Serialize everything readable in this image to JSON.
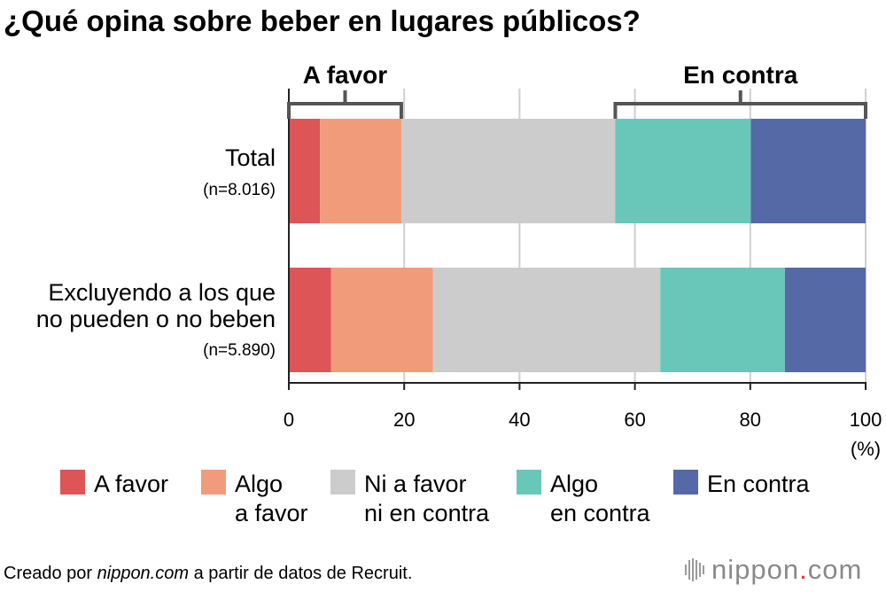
{
  "chart_data": {
    "type": "bar",
    "orientation": "horizontal",
    "stacked": true,
    "title": "¿Qué opina sobre beber en lugares públicos?",
    "categories": [
      {
        "lines": [
          "Total"
        ],
        "n": "(n=8.016)"
      },
      {
        "lines": [
          "Excluyendo a los que",
          "no pueden o no beben"
        ],
        "n": "(n=5.890)"
      }
    ],
    "series": [
      {
        "name": "A favor",
        "legend_lines": [
          "A favor"
        ],
        "color": "#dd5557",
        "values": [
          5.4,
          7.3
        ]
      },
      {
        "name": "Algo a favor",
        "legend_lines": [
          "Algo",
          "a favor"
        ],
        "color": "#f29b7b",
        "values": [
          14.1,
          17.7
        ]
      },
      {
        "name": "Ni a favor ni en contra",
        "legend_lines": [
          "Ni a favor",
          "ni en contra"
        ],
        "color": "#cccccc",
        "values": [
          37.1,
          39.4
        ]
      },
      {
        "name": "Algo en contra",
        "legend_lines": [
          "Algo",
          "en contra"
        ],
        "color": "#69c7b9",
        "values": [
          23.5,
          21.6
        ]
      },
      {
        "name": "En contra",
        "legend_lines": [
          "En contra"
        ],
        "color": "#5469a6",
        "values": [
          19.9,
          14.0
        ]
      }
    ],
    "xlim": [
      0,
      100
    ],
    "xticks": [
      "0",
      "20",
      "40",
      "60",
      "80",
      "100"
    ],
    "xunit": "(%)",
    "grid": true,
    "brackets": [
      {
        "label": "A favor",
        "from": 0,
        "to": 19.5
      },
      {
        "label": "En contra",
        "from": 56.6,
        "to": 100
      }
    ]
  },
  "source": {
    "prefix": "Creado por ",
    "site": "nippon.com",
    "suffix": " a partir de datos de Recruit."
  },
  "logo": {
    "name": "nippon",
    "dot": ".",
    "tld": "com",
    "accent_color": "#d8323a"
  }
}
